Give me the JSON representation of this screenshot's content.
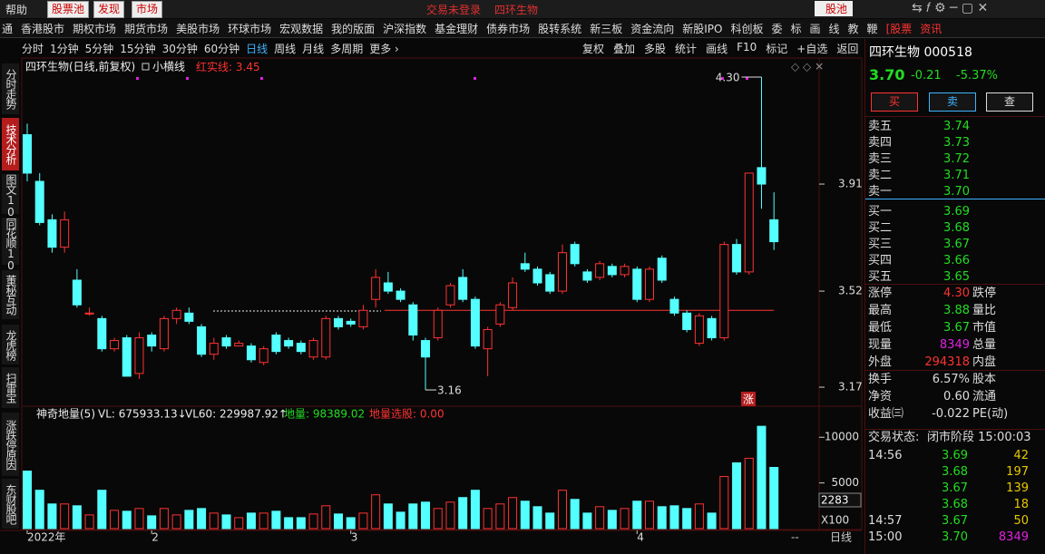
{
  "top_bar": {
    "help": "帮助",
    "buttons": [
      "股票池",
      "发现",
      "市场"
    ],
    "status": "交易未登录",
    "stock": "四环生物",
    "pool": "股池"
  },
  "menu": [
    "通",
    "香港股市",
    "期权市场",
    "期货市场",
    "美股市场",
    "环球市场",
    "宏观数据",
    "我的版面",
    "沪深指数",
    "基金理财",
    "债券市场",
    "股转系统",
    "新三板",
    "资金流向",
    "新股IPO",
    "科创板",
    "委",
    "标",
    "画",
    "线",
    "教",
    "鞭",
    "[股票",
    "资讯"
  ],
  "toolbar": {
    "periods": [
      "分时",
      "1分钟",
      "5分钟",
      "15分钟",
      "30分钟",
      "60分钟",
      "日线",
      "周线",
      "月线",
      "多周期",
      "更多 ›"
    ],
    "active": "日线",
    "tools": [
      "复权",
      "叠加",
      "多股",
      "统计",
      "画线",
      "F10",
      "标记",
      "+自选",
      "返回"
    ]
  },
  "side_tabs": [
    "分时走势",
    "技术分析",
    "图文10",
    "同花顺10",
    "董秘互动",
    "龙虎榜",
    "扫雷宝",
    "涨跌停原因",
    "东财股吧"
  ],
  "chart_data": {
    "type": "candlestick",
    "title": "四环生物(日线,前复权)",
    "indicator": "小横线",
    "line_label": "红实线:",
    "line_value": 3.45,
    "high_label": "4.30",
    "low_label": "3.16",
    "limit_up_label": "涨",
    "up_color": "#ff3232",
    "down_color": "#54ffff",
    "categories": [
      "2022年",
      null,
      null,
      null,
      null,
      null,
      null,
      null,
      null,
      null,
      "2",
      null,
      null,
      null,
      null,
      null,
      null,
      null,
      null,
      null,
      null,
      null,
      null,
      null,
      null,
      null,
      "3",
      null,
      null,
      null,
      null,
      null,
      null,
      null,
      null,
      null,
      null,
      null,
      null,
      null,
      null,
      null,
      null,
      null,
      null,
      null,
      null,
      null,
      null,
      "4",
      null,
      null,
      null,
      null,
      null,
      null,
      null,
      null,
      null,
      null,
      null
    ],
    "open": [
      4.09,
      3.92,
      3.78,
      3.68,
      3.56,
      3.44,
      3.42,
      3.31,
      3.35,
      3.22,
      3.36,
      3.31,
      3.42,
      3.44,
      3.39,
      3.29,
      3.35,
      3.32,
      3.32,
      3.26,
      3.36,
      3.34,
      3.33,
      3.28,
      3.28,
      3.42,
      3.41,
      3.39,
      3.49,
      3.55,
      3.52,
      3.47,
      3.34,
      3.35,
      3.47,
      3.57,
      3.49,
      3.31,
      3.4,
      3.46,
      3.62,
      3.6,
      3.58,
      3.52,
      3.69,
      3.59,
      3.57,
      3.61,
      3.58,
      3.6,
      3.49,
      3.64,
      3.49,
      3.44,
      3.33,
      3.42,
      3.35,
      3.69,
      3.59,
      3.97,
      3.78
    ],
    "high": [
      4.13,
      3.95,
      3.8,
      3.81,
      3.6,
      3.46,
      3.43,
      3.35,
      3.36,
      3.37,
      3.37,
      3.43,
      3.46,
      3.46,
      3.4,
      3.35,
      3.36,
      3.34,
      3.33,
      3.32,
      3.37,
      3.35,
      3.34,
      3.35,
      3.43,
      3.43,
      3.42,
      3.47,
      3.6,
      3.59,
      3.53,
      3.48,
      3.35,
      3.46,
      3.55,
      3.6,
      3.5,
      3.39,
      3.48,
      3.57,
      3.66,
      3.61,
      3.59,
      3.69,
      3.7,
      3.6,
      3.63,
      3.62,
      3.62,
      3.61,
      3.61,
      3.65,
      3.5,
      3.45,
      3.44,
      3.43,
      3.7,
      3.71,
      3.95,
      4.3,
      3.88
    ],
    "low": [
      3.92,
      3.76,
      3.66,
      3.66,
      3.46,
      3.43,
      3.3,
      3.3,
      3.21,
      3.2,
      3.3,
      3.3,
      3.4,
      3.4,
      3.28,
      3.27,
      3.31,
      3.32,
      3.26,
      3.25,
      3.29,
      3.31,
      3.29,
      3.27,
      3.27,
      3.38,
      3.39,
      3.38,
      3.46,
      3.51,
      3.48,
      3.34,
      3.16,
      3.34,
      3.46,
      3.48,
      3.31,
      3.21,
      3.39,
      3.45,
      3.59,
      3.54,
      3.51,
      3.51,
      3.61,
      3.55,
      3.56,
      3.57,
      3.57,
      3.48,
      3.48,
      3.55,
      3.43,
      3.37,
      3.32,
      3.34,
      3.34,
      3.58,
      3.58,
      3.82,
      3.67
    ],
    "close": [
      3.95,
      3.77,
      3.68,
      3.78,
      3.47,
      3.44,
      3.31,
      3.34,
      3.21,
      3.35,
      3.32,
      3.42,
      3.45,
      3.41,
      3.29,
      3.33,
      3.32,
      3.33,
      3.27,
      3.31,
      3.3,
      3.32,
      3.3,
      3.34,
      3.42,
      3.39,
      3.4,
      3.45,
      3.57,
      3.52,
      3.49,
      3.36,
      3.28,
      3.45,
      3.54,
      3.49,
      3.32,
      3.38,
      3.47,
      3.55,
      3.6,
      3.55,
      3.52,
      3.66,
      3.62,
      3.56,
      3.62,
      3.58,
      3.61,
      3.49,
      3.6,
      3.56,
      3.44,
      3.38,
      3.43,
      3.35,
      3.69,
      3.59,
      3.95,
      3.91,
      3.7
    ],
    "ylim": [
      3.104,
      4.366
    ],
    "yticks": [
      3.91,
      3.52,
      3.17
    ],
    "volume_panel": {
      "name": "神奇地量(5)",
      "vl": "VL: 675933.13↓",
      "vl60": "VL60: 229987.92↑",
      "low_volume": "地量: 98389.02",
      "low_pick": "地量选股: 0.00",
      "current": "2283",
      "unit": "X100"
    },
    "volume": [
      6300,
      4200,
      2700,
      2700,
      2500,
      1500,
      4200,
      2000,
      1900,
      2200,
      1400,
      2200,
      1500,
      2000,
      2200,
      1700,
      1500,
      1200,
      1700,
      1700,
      1900,
      1200,
      1200,
      1600,
      2500,
      1600,
      1200,
      1700,
      3700,
      2700,
      1800,
      2700,
      2900,
      2200,
      2900,
      3400,
      4200,
      2200,
      2700,
      3400,
      3000,
      2400,
      1700,
      4200,
      3200,
      1700,
      2400,
      2000,
      2200,
      3000,
      3000,
      2400,
      2500,
      2200,
      2700,
      1700,
      5700,
      7200,
      7700,
      11200,
      6700
    ],
    "vlim": [
      0,
      13200
    ],
    "vticks": [
      10000,
      5000
    ],
    "footer": {
      "dash": "--",
      "period": "日线"
    }
  },
  "right_panel": {
    "name": "四环生物 000518",
    "price": "3.70",
    "change": "-0.21",
    "change_pct": "-5.37%",
    "buttons": [
      "买",
      "卖",
      "查"
    ],
    "order_book": [
      [
        "卖五",
        "3.74"
      ],
      [
        "卖四",
        "3.73"
      ],
      [
        "卖三",
        "3.72"
      ],
      [
        "卖二",
        "3.71"
      ],
      [
        "卖一",
        "3.70"
      ],
      [
        "买一",
        "3.69"
      ],
      [
        "买二",
        "3.68"
      ],
      [
        "买三",
        "3.67"
      ],
      [
        "买四",
        "3.66"
      ],
      [
        "买五",
        "3.65"
      ]
    ],
    "stats": [
      [
        "涨停",
        "4.30",
        "跌停"
      ],
      [
        "最高",
        "3.88",
        "量比"
      ],
      [
        "最低",
        "3.67",
        "市值"
      ],
      [
        "现量",
        "8349",
        "总量"
      ],
      [
        "外盘",
        "294318",
        "内盘"
      ],
      [
        "换手",
        "6.57%",
        "股本"
      ],
      [
        "净资",
        "0.60",
        "流通"
      ],
      [
        "收益㈢",
        "-0.022",
        "PE(动)"
      ]
    ],
    "status_label": "交易状态:",
    "status": "闭市阶段 15:00:03",
    "ticks": [
      [
        "14:56",
        "3.69",
        "42"
      ],
      [
        null,
        "3.68",
        "197"
      ],
      [
        null,
        "3.67",
        "139"
      ],
      [
        null,
        "3.68",
        "18"
      ],
      [
        "14:57",
        "3.67",
        "50"
      ],
      [
        "15:00",
        "3.70",
        "8349"
      ]
    ]
  }
}
